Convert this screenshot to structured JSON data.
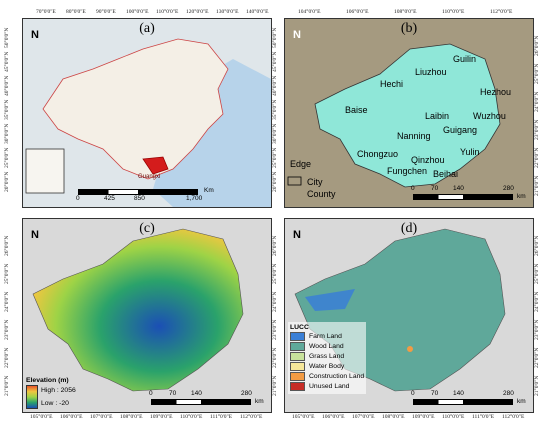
{
  "panels": {
    "a": {
      "title": "(a)",
      "country_label": "Guangxi",
      "scale": [
        "0",
        "425",
        "850",
        "1,700"
      ],
      "scale_unit": "Km"
    },
    "b": {
      "title": "(b)",
      "scale": [
        "0",
        "70",
        "140",
        "280"
      ],
      "scale_unit": "km",
      "cities": [
        "Guilin",
        "Hechi",
        "Liuzhou",
        "Hezhou",
        "Baise",
        "Laibin",
        "Wuzhou",
        "Nanning",
        "Guigang",
        "Chongzuo",
        "Yulin",
        "Qinzhou",
        "Fungchen",
        "Beihai"
      ],
      "legend": [
        "Edge",
        "City",
        "County"
      ]
    },
    "c": {
      "title": "(c)",
      "legend_title": "Elevation (m)",
      "high": "High : 2056",
      "low": "Low : -20",
      "scale": [
        "0",
        "70",
        "140",
        "280"
      ],
      "scale_unit": "km"
    },
    "d": {
      "title": "(d)",
      "legend_title": "LUCC",
      "classes": [
        {
          "label": "Farm Land",
          "color": "#3a7fd6"
        },
        {
          "label": "Wood Land",
          "color": "#5fa89a"
        },
        {
          "label": "Grass Land",
          "color": "#c8e29b"
        },
        {
          "label": "Water Body",
          "color": "#f6e79a"
        },
        {
          "label": "Construction Land",
          "color": "#f29b44"
        },
        {
          "label": "Unused Land",
          "color": "#c62d27"
        }
      ],
      "scale": [
        "0",
        "70",
        "140",
        "280"
      ],
      "scale_unit": "km"
    }
  },
  "north_label": "N",
  "top_lon_a": [
    "70°0'0\"E",
    "80°0'0\"E",
    "90°0'0\"E",
    "100°0'0\"E",
    "110°0'0\"E",
    "120°0'0\"E",
    "130°0'0\"E",
    "140°0'0\"E"
  ],
  "top_lon_b": [
    "104°0'0\"E",
    "106°0'0\"E",
    "108°0'0\"E",
    "110°0'0\"E",
    "112°0'0\"E"
  ],
  "bottom_lon": [
    "105°0'0\"E",
    "106°0'0\"E",
    "107°0'0\"E",
    "108°0'0\"E",
    "109°0'0\"E",
    "110°0'0\"E",
    "111°0'0\"E",
    "112°0'0\"E"
  ],
  "lat_a": [
    "50°0'0\"N",
    "45°0'0\"N",
    "40°0'0\"N",
    "35°0'0\"N",
    "30°0'0\"N",
    "25°0'0\"N",
    "20°0'0\"N"
  ],
  "lat_b": [
    "26°0'0\"N",
    "25°0'0\"N",
    "24°0'0\"N",
    "23°0'0\"N",
    "22°0'0\"N",
    "21°0'0\"N"
  ]
}
